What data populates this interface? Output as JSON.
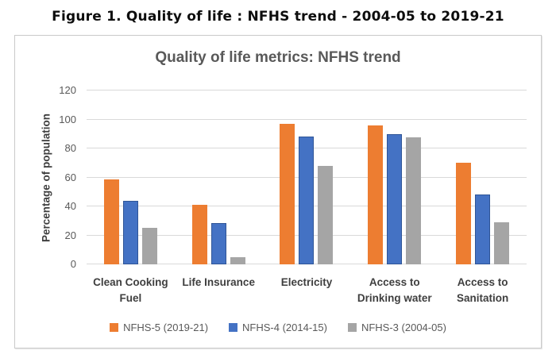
{
  "figure_title": "Figure 1.  Quality of life : NFHS trend - 2004-05 to 2019-21",
  "colors": {
    "series_orange": "#ED7D31",
    "series_blue": "#4472C4",
    "series_blue_border": "#2F5597",
    "series_gray": "#A5A5A5",
    "title_gray": "#595959",
    "gridline": "#D9D9D9",
    "chart_border": "#C9C9C9",
    "figure_title_color": "#0D0D0D"
  },
  "chart_data": {
    "type": "bar",
    "title": "Quality of life metrics: NFHS trend",
    "xlabel": "",
    "ylabel": "Percentage of population",
    "ylim": [
      0,
      120
    ],
    "ytick_step": 20,
    "grid": true,
    "legend_position": "bottom",
    "categories": [
      "Clean Cooking\nFuel",
      "Life Insurance",
      "Electricity",
      "Access to\nDrinking water",
      "Access to\nSanitation"
    ],
    "series": [
      {
        "name": "NFHS-5 (2019-21)",
        "color": "#ED7D31",
        "values": [
          58.6,
          41.0,
          96.8,
          95.9,
          70.2
        ]
      },
      {
        "name": "NFHS-4  (2014-15)",
        "color": "#4472C4",
        "border": "#2F5597",
        "values": [
          43.8,
          28.7,
          88.2,
          89.9,
          48.5
        ]
      },
      {
        "name": "NFHS-3 (2004-05)",
        "color": "#A5A5A5",
        "values": [
          25.0,
          4.8,
          67.9,
          87.9,
          29.1
        ]
      }
    ]
  }
}
